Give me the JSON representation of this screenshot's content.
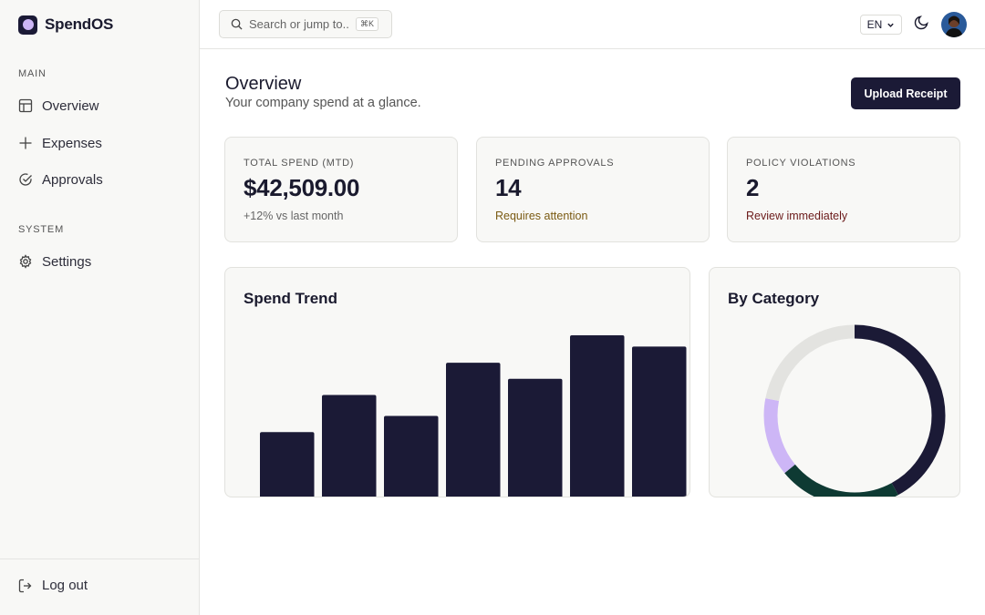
{
  "app": {
    "name": "SpendOS"
  },
  "sidebar": {
    "sections": [
      {
        "label": "MAIN",
        "items": [
          {
            "label": "Overview",
            "icon": "layout-icon"
          },
          {
            "label": "Expenses",
            "icon": "plus-icon"
          },
          {
            "label": "Approvals",
            "icon": "check-circle-icon"
          }
        ]
      },
      {
        "label": "SYSTEM",
        "items": [
          {
            "label": "Settings",
            "icon": "gear-icon"
          }
        ]
      }
    ],
    "logout": "Log out"
  },
  "topbar": {
    "search_placeholder": "Search or jump to...",
    "search_shortcut": "⌘K",
    "language": "EN"
  },
  "header": {
    "title": "Overview",
    "subtitle": "Your company spend at a glance.",
    "upload_button": "Upload Receipt"
  },
  "stats": [
    {
      "label": "TOTAL SPEND (MTD)",
      "value": "$42,509.00",
      "note": "+12% vs last month",
      "note_color": "#666666"
    },
    {
      "label": "PENDING APPROVALS",
      "value": "14",
      "note": "Requires attention",
      "note_color": "#7a5a12"
    },
    {
      "label": "POLICY VIOLATIONS",
      "value": "2",
      "note": "Review immediately",
      "note_color": "#6b1a1a"
    }
  ],
  "panels": {
    "trend_title": "Spend Trend",
    "category_title": "By Category"
  },
  "chart_data": [
    {
      "type": "bar",
      "categories": [
        "",
        "",
        "",
        "",
        "",
        "",
        ""
      ],
      "values": [
        40,
        63,
        50,
        83,
        73,
        100,
        93
      ],
      "ylim": [
        0,
        100
      ],
      "color": "#1b1a36",
      "grid": false
    },
    {
      "type": "pie",
      "style": "donut",
      "values": [
        42,
        22,
        14,
        22
      ],
      "colors": [
        "#1b1a36",
        "#0e3a33",
        "#cdb6f6",
        "#e3e3e0"
      ]
    }
  ]
}
